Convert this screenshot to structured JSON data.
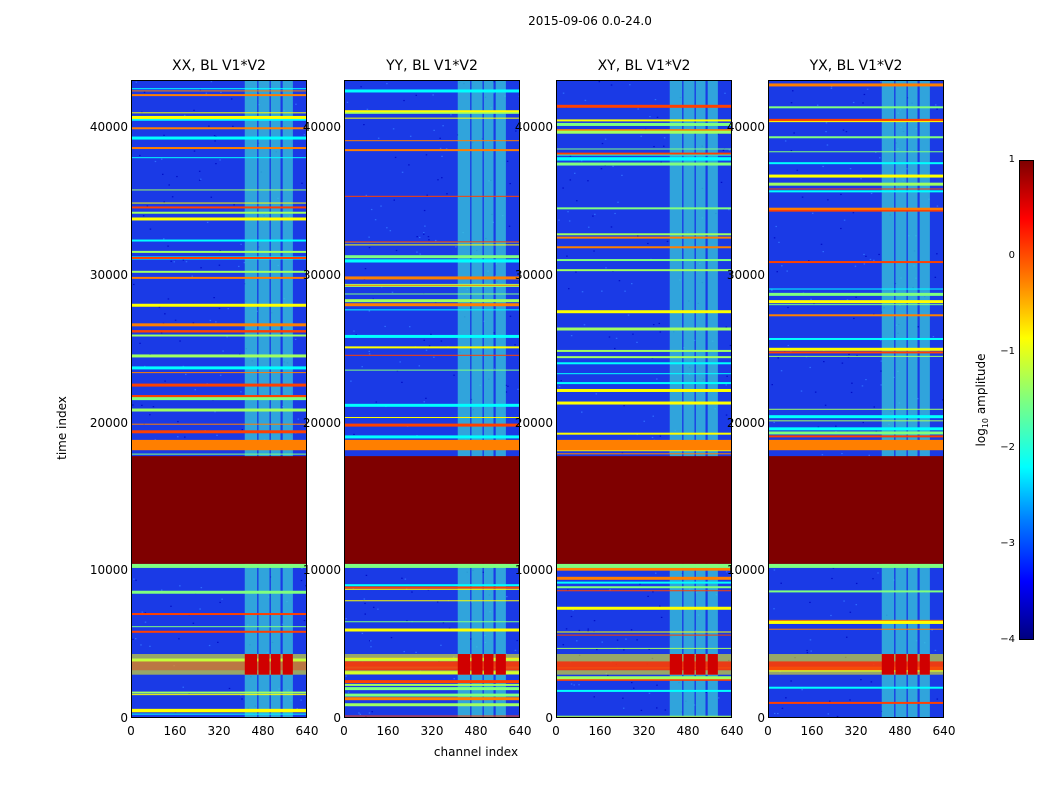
{
  "chart_data": {
    "type": "heatmap",
    "suptitle": "2015-09-06 0.0-24.0",
    "xlabel": "channel index",
    "ylabel": "time index",
    "xlim": [
      0,
      640
    ],
    "ylim": [
      0,
      43200
    ],
    "xticks": [
      "0",
      "160",
      "320",
      "480",
      "640"
    ],
    "yticks": [
      "0",
      "10000",
      "20000",
      "30000",
      "40000"
    ],
    "colorbar": {
      "label": "log",
      "label_sub": "10",
      "label_rest": " amplitude",
      "range": [
        -4,
        1
      ],
      "ticks": [
        "1",
        "0",
        "−1",
        "−2",
        "−3",
        "−4"
      ]
    },
    "panels": [
      {
        "title": "XX, BL V1*V2"
      },
      {
        "title": "YY, BL V1*V2"
      },
      {
        "title": "XY, BL V1*V2"
      },
      {
        "title": "YX, BL V1*V2"
      }
    ],
    "features": {
      "saturated_block_time": [
        10500,
        17800
      ],
      "saturated_band_time": [
        18200,
        18900
      ],
      "bright_channel_columns": [
        [
          410,
          455
        ],
        [
          460,
          500
        ],
        [
          505,
          540
        ],
        [
          548,
          585
        ]
      ],
      "hot_region_time": [
        3000,
        4400
      ]
    }
  }
}
